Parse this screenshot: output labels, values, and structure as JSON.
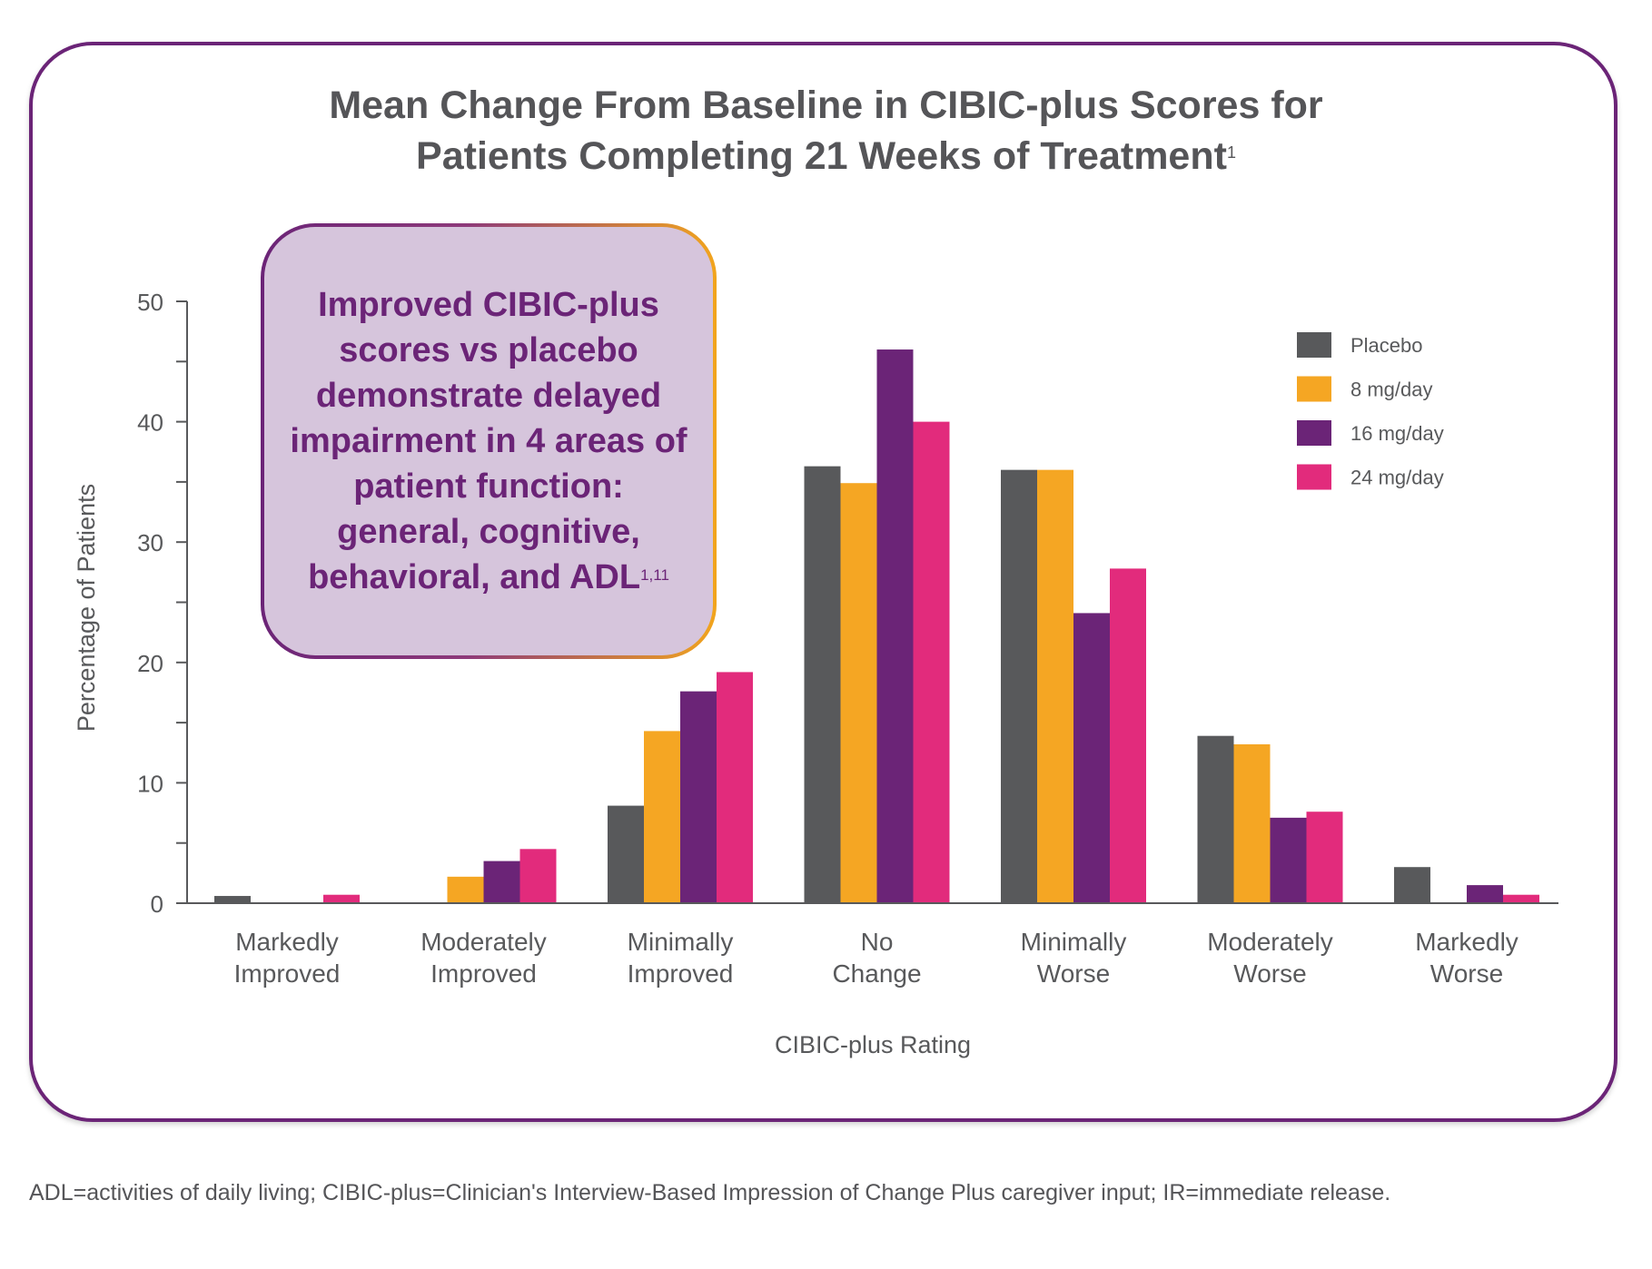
{
  "title": {
    "line1": "Mean Change From Baseline in CIBIC-plus Scores for",
    "line2": "Patients Completing 21 Weeks of Treatment",
    "ref": "1"
  },
  "callout": {
    "text": "Improved CIBIC-plus scores vs placebo demonstrate delayed impairment in 4 areas of patient function: general, cognitive, behavioral, and ADL",
    "ref": "1,11"
  },
  "footnote": "ADL=activities of daily living; CIBIC-plus=Clinician's Interview-Based Impression of Change Plus caregiver input; IR=immediate release.",
  "chart_data": {
    "type": "bar",
    "title": "Mean Change From Baseline in CIBIC-plus Scores for Patients Completing 21 Weeks of Treatment",
    "xlabel": "CIBIC-plus Rating",
    "ylabel": "Percentage of Patients",
    "ylim": [
      0,
      50
    ],
    "yticks": [
      0,
      10,
      20,
      30,
      40,
      50
    ],
    "categories": [
      [
        "Markedly",
        "Improved"
      ],
      [
        "Moderately",
        "Improved"
      ],
      [
        "Minimally",
        "Improved"
      ],
      [
        "No",
        "Change"
      ],
      [
        "Minimally",
        "Worse"
      ],
      [
        "Moderately",
        "Worse"
      ],
      [
        "Markedly",
        "Worse"
      ]
    ],
    "legend_position": "top-right",
    "series": [
      {
        "name": "Placebo",
        "color": "#58595b",
        "values": [
          0.6,
          0,
          8.1,
          36.3,
          36.0,
          13.9,
          3.0
        ]
      },
      {
        "name": "8 mg/day",
        "color": "#f5a623",
        "values": [
          0,
          2.2,
          14.3,
          34.9,
          36.0,
          13.2,
          0
        ]
      },
      {
        "name": "16 mg/day",
        "color": "#6b2477",
        "values": [
          0,
          3.5,
          17.6,
          46.0,
          24.1,
          7.1,
          1.5
        ]
      },
      {
        "name": "24 mg/day",
        "color": "#e22b7c",
        "values": [
          0.7,
          4.5,
          19.2,
          40.0,
          27.8,
          7.6,
          0.7
        ]
      }
    ]
  }
}
